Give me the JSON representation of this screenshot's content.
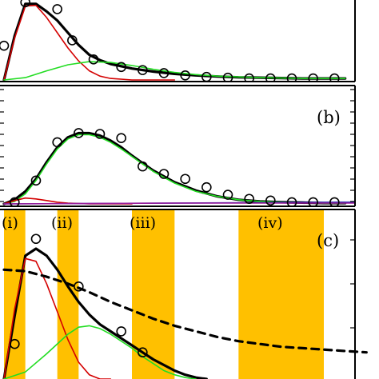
{
  "chart_data": [
    {
      "type": "line",
      "panel_label": "",
      "x": [
        0,
        1,
        2,
        3,
        4,
        5,
        6,
        7,
        8,
        9,
        10,
        11,
        12,
        13,
        14,
        15
      ],
      "markers": {
        "name": "",
        "x": [
          0.0,
          1.0,
          2.5,
          3.2,
          4.2,
          5.5,
          6.5,
          7.5,
          8.5,
          9.5,
          10.5,
          11.5,
          12.5,
          13.5,
          14.5,
          15.5
        ],
        "y": [
          0.45,
          1.02,
          0.93,
          0.52,
          0.27,
          0.17,
          0.13,
          0.09,
          0.06,
          0.04,
          0.03,
          0.02,
          0.02,
          0.02,
          0.02,
          0.02
        ]
      },
      "series": [
        {
          "color": "#000000",
          "x": [
            0,
            0.5,
            1,
            1.5,
            2,
            2.5,
            3,
            3.5,
            4,
            4.5,
            5,
            6,
            7,
            8,
            9,
            10,
            11,
            12,
            13,
            14,
            15,
            16
          ],
          "y": [
            0.0,
            0.58,
            1.0,
            1.0,
            0.9,
            0.78,
            0.62,
            0.46,
            0.33,
            0.26,
            0.21,
            0.15,
            0.11,
            0.08,
            0.06,
            0.045,
            0.035,
            0.03,
            0.025,
            0.02,
            0.02,
            0.02
          ]
        },
        {
          "color": "#d40000",
          "x": [
            0,
            0.5,
            1,
            1.5,
            2,
            2.5,
            3,
            3.5,
            4,
            4.5,
            5,
            6,
            7,
            8
          ],
          "y": [
            0.0,
            0.55,
            0.97,
            0.98,
            0.82,
            0.62,
            0.42,
            0.25,
            0.12,
            0.05,
            0.02,
            0.0,
            0.0,
            0.0
          ]
        },
        {
          "color": "#22dd22",
          "x": [
            0,
            1,
            2,
            3,
            4,
            5,
            6,
            7,
            8,
            9,
            10,
            11,
            12,
            13,
            14,
            15,
            16
          ],
          "y": [
            0.0,
            0.03,
            0.12,
            0.2,
            0.24,
            0.23,
            0.19,
            0.14,
            0.1,
            0.07,
            0.05,
            0.04,
            0.03,
            0.025,
            0.02,
            0.02,
            0.02
          ]
        }
      ],
      "xlim": [
        0,
        16.5
      ],
      "ylim": [
        0,
        1.05
      ],
      "grid": false
    },
    {
      "type": "line",
      "panel_label": "(b)",
      "markers": {
        "name": "",
        "x": [
          0.5,
          1.5,
          2.5,
          3.5,
          4.5,
          5.5,
          6.5,
          7.5,
          8.5,
          9.5,
          10.5,
          11.5,
          12.5,
          13.5,
          14.5,
          15.5
        ],
        "y": [
          0.02,
          0.28,
          0.74,
          0.85,
          0.84,
          0.79,
          0.45,
          0.36,
          0.3,
          0.2,
          0.11,
          0.06,
          0.04,
          0.02,
          0.02,
          0.02
        ]
      },
      "series": [
        {
          "color": "#000000",
          "x": [
            0,
            0.5,
            1,
            1.5,
            2,
            2.5,
            3,
            3.5,
            4,
            4.5,
            5,
            5.5,
            6,
            6.5,
            7,
            8,
            9,
            10,
            11,
            12,
            13,
            14,
            15,
            16
          ],
          "y": [
            0.0,
            0.05,
            0.15,
            0.3,
            0.5,
            0.68,
            0.8,
            0.85,
            0.85,
            0.82,
            0.76,
            0.68,
            0.58,
            0.49,
            0.4,
            0.26,
            0.16,
            0.09,
            0.05,
            0.03,
            0.02,
            0.015,
            0.01,
            0.01
          ]
        },
        {
          "color": "#22dd22",
          "x": [
            0,
            0.5,
            1,
            1.5,
            2,
            2.5,
            3,
            3.5,
            4,
            4.5,
            5,
            5.5,
            6,
            6.5,
            7,
            8,
            9,
            10,
            11,
            12,
            13,
            14,
            15,
            16
          ],
          "y": [
            0.0,
            0.03,
            0.12,
            0.28,
            0.48,
            0.66,
            0.78,
            0.83,
            0.83,
            0.8,
            0.74,
            0.66,
            0.57,
            0.48,
            0.39,
            0.25,
            0.15,
            0.09,
            0.05,
            0.03,
            0.02,
            0.015,
            0.01,
            0.01
          ]
        },
        {
          "color": "#d40000",
          "x": [
            0,
            0.5,
            1,
            1.5,
            2,
            2.5,
            3,
            4,
            5,
            6
          ],
          "y": [
            0.0,
            0.04,
            0.07,
            0.06,
            0.04,
            0.02,
            0.01,
            0.0,
            0.0,
            0.0
          ]
        },
        {
          "color": "#1a1aaa",
          "x": [
            0,
            16.5
          ],
          "y": [
            0.0,
            0.02
          ]
        },
        {
          "color": "#9b1f9b",
          "x": [
            0,
            4,
            8,
            16.5
          ],
          "y": [
            0.0,
            0.005,
            0.01,
            0.01
          ]
        }
      ],
      "xlim": [
        0,
        16.5
      ],
      "ylim": [
        0,
        1.2
      ],
      "grid": false
    },
    {
      "type": "line",
      "panel_label": "(c)",
      "shaded_regions": [
        {
          "label": "(i)",
          "x": [
            0,
            1
          ],
          "color": "#ffc000"
        },
        {
          "label": "(ii)",
          "x": [
            2.5,
            3.5
          ],
          "color": "#ffc000"
        },
        {
          "label": "(iii)",
          "x": [
            6,
            8
          ],
          "color": "#ffc000"
        },
        {
          "label": "(iv)",
          "x": [
            11,
            15
          ],
          "color": "#ffc000"
        }
      ],
      "markers": {
        "name": "",
        "x": [
          0.5,
          1.5,
          3.5,
          5.5,
          6.5
        ],
        "y": [
          0.25,
          1.0,
          0.66,
          0.34,
          0.19
        ]
      },
      "series": [
        {
          "color": "#000000",
          "dashed": false,
          "x": [
            0,
            0.5,
            1,
            1.5,
            2,
            2.5,
            3,
            3.5,
            4,
            4.5,
            5,
            5.5,
            6,
            6.5,
            7,
            7.5,
            8,
            8.5,
            9,
            9.5
          ],
          "y": [
            0.0,
            0.45,
            0.88,
            0.93,
            0.88,
            0.78,
            0.66,
            0.55,
            0.46,
            0.39,
            0.34,
            0.29,
            0.24,
            0.19,
            0.14,
            0.1,
            0.06,
            0.03,
            0.01,
            0.0
          ]
        },
        {
          "color": "#d40000",
          "dashed": false,
          "x": [
            0,
            0.5,
            1,
            1.5,
            2,
            2.5,
            3,
            3.5,
            4,
            4.5,
            5
          ],
          "y": [
            0.0,
            0.5,
            0.86,
            0.84,
            0.68,
            0.48,
            0.28,
            0.12,
            0.03,
            0.0,
            0.0
          ]
        },
        {
          "color": "#22dd22",
          "dashed": false,
          "x": [
            0,
            1,
            2,
            3,
            3.5,
            4,
            4.5,
            5,
            5.5,
            6,
            6.5,
            7,
            7.5,
            8,
            8.5,
            9
          ],
          "y": [
            0.0,
            0.05,
            0.18,
            0.32,
            0.37,
            0.38,
            0.36,
            0.32,
            0.27,
            0.22,
            0.16,
            0.11,
            0.06,
            0.03,
            0.01,
            0.0
          ]
        },
        {
          "color": "#000000",
          "dashed": true,
          "x": [
            0,
            1,
            2,
            3,
            4,
            5,
            6,
            7,
            8,
            9,
            10,
            11,
            12,
            13,
            14,
            15,
            16,
            17
          ],
          "y": [
            0.78,
            0.77,
            0.73,
            0.68,
            0.62,
            0.55,
            0.49,
            0.43,
            0.38,
            0.34,
            0.3,
            0.27,
            0.25,
            0.23,
            0.22,
            0.21,
            0.2,
            0.19
          ]
        }
      ],
      "xlim": [
        0,
        16.5
      ],
      "ylim": [
        0,
        1.05
      ],
      "grid": false
    }
  ]
}
